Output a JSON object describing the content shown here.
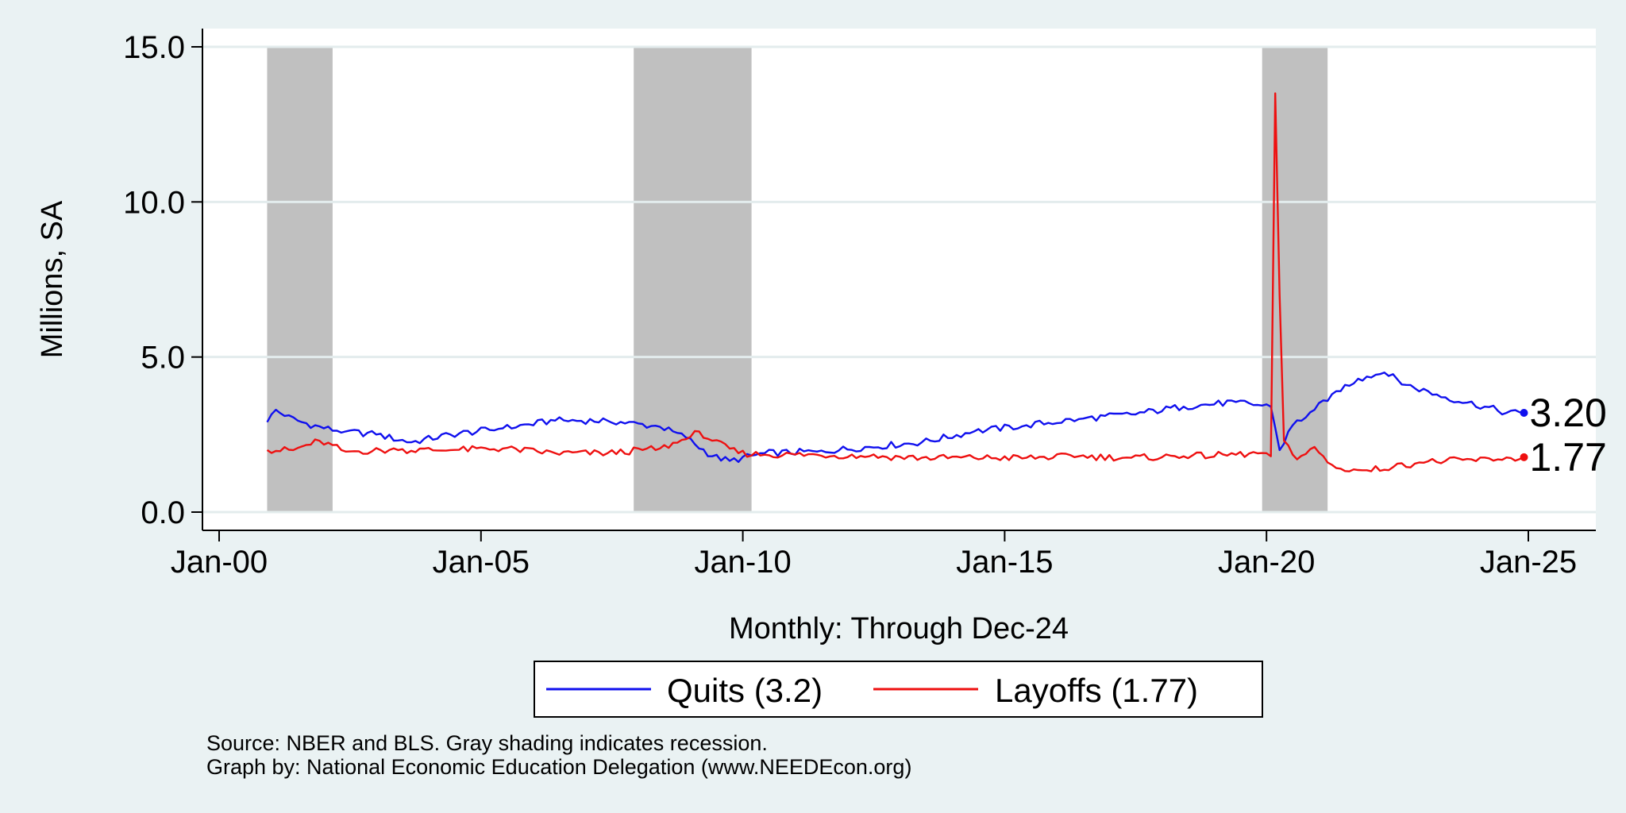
{
  "chart_data": {
    "type": "line",
    "xlabel": "Monthly: Through Dec-24",
    "ylabel": "Millions, SA",
    "ylim": [
      -0.5,
      15.6
    ],
    "yticks": [
      {
        "value": 0,
        "label": "0.0"
      },
      {
        "value": 5,
        "label": "5.0"
      },
      {
        "value": 10,
        "label": "10.0"
      },
      {
        "value": 15,
        "label": "15.0"
      }
    ],
    "xlim": [
      "Aug-99",
      "Dec-25"
    ],
    "xticks": [
      {
        "date": "2000-01",
        "label": "Jan-00"
      },
      {
        "date": "2005-01",
        "label": "Jan-05"
      },
      {
        "date": "2010-01",
        "label": "Jan-10"
      },
      {
        "date": "2015-01",
        "label": "Jan-15"
      },
      {
        "date": "2020-01",
        "label": "Jan-20"
      },
      {
        "date": "2025-01",
        "label": "Jan-25"
      }
    ],
    "recessions": [
      {
        "start": "2000-12",
        "end": "2002-03"
      },
      {
        "start": "2007-12",
        "end": "2010-03"
      },
      {
        "start": "2019-12",
        "end": "2021-03"
      }
    ],
    "recession_color": "#c0c0c0",
    "series": [
      {
        "name": "Quits",
        "color": "#1010ee",
        "points": [
          {
            "date": "2000-12",
            "value": 2.9
          },
          {
            "date": "2001-02",
            "value": 3.3
          },
          {
            "date": "2001-04",
            "value": 3.1
          },
          {
            "date": "2001-08",
            "value": 2.9
          },
          {
            "date": "2002-01",
            "value": 2.7
          },
          {
            "date": "2002-06",
            "value": 2.6
          },
          {
            "date": "2003-01",
            "value": 2.5
          },
          {
            "date": "2003-09",
            "value": 2.25
          },
          {
            "date": "2004-06",
            "value": 2.5
          },
          {
            "date": "2005-06",
            "value": 2.7
          },
          {
            "date": "2006-06",
            "value": 2.95
          },
          {
            "date": "2007-06",
            "value": 2.95
          },
          {
            "date": "2008-06",
            "value": 2.75
          },
          {
            "date": "2008-12",
            "value": 2.4
          },
          {
            "date": "2009-06",
            "value": 1.8
          },
          {
            "date": "2009-10",
            "value": 1.65
          },
          {
            "date": "2010-06",
            "value": 1.9
          },
          {
            "date": "2011-06",
            "value": 1.95
          },
          {
            "date": "2012-06",
            "value": 2.1
          },
          {
            "date": "2013-06",
            "value": 2.25
          },
          {
            "date": "2014-06",
            "value": 2.6
          },
          {
            "date": "2015-06",
            "value": 2.8
          },
          {
            "date": "2016-06",
            "value": 3.0
          },
          {
            "date": "2017-06",
            "value": 3.15
          },
          {
            "date": "2018-06",
            "value": 3.4
          },
          {
            "date": "2019-06",
            "value": 3.55
          },
          {
            "date": "2020-02",
            "value": 3.4
          },
          {
            "date": "2020-04",
            "value": 2.0
          },
          {
            "date": "2020-07",
            "value": 2.8
          },
          {
            "date": "2020-12",
            "value": 3.3
          },
          {
            "date": "2021-04",
            "value": 3.8
          },
          {
            "date": "2021-10",
            "value": 4.3
          },
          {
            "date": "2022-04",
            "value": 4.5
          },
          {
            "date": "2022-09",
            "value": 4.1
          },
          {
            "date": "2023-06",
            "value": 3.7
          },
          {
            "date": "2024-03",
            "value": 3.4
          },
          {
            "date": "2024-08",
            "value": 3.2
          },
          {
            "date": "2024-12",
            "value": 3.2
          }
        ]
      },
      {
        "name": "Layoffs",
        "color": "#ee1010",
        "points": [
          {
            "date": "2000-12",
            "value": 2.0
          },
          {
            "date": "2001-06",
            "value": 2.0
          },
          {
            "date": "2001-12",
            "value": 2.3
          },
          {
            "date": "2002-06",
            "value": 1.95
          },
          {
            "date": "2003-06",
            "value": 2.0
          },
          {
            "date": "2004-06",
            "value": 2.0
          },
          {
            "date": "2005-06",
            "value": 2.05
          },
          {
            "date": "2006-06",
            "value": 1.9
          },
          {
            "date": "2007-06",
            "value": 1.9
          },
          {
            "date": "2008-06",
            "value": 2.05
          },
          {
            "date": "2008-12",
            "value": 2.35
          },
          {
            "date": "2009-03",
            "value": 2.6
          },
          {
            "date": "2009-06",
            "value": 2.3
          },
          {
            "date": "2009-12",
            "value": 1.9
          },
          {
            "date": "2010-06",
            "value": 1.85
          },
          {
            "date": "2011-06",
            "value": 1.85
          },
          {
            "date": "2012-06",
            "value": 1.8
          },
          {
            "date": "2013-06",
            "value": 1.75
          },
          {
            "date": "2014-06",
            "value": 1.75
          },
          {
            "date": "2015-06",
            "value": 1.75
          },
          {
            "date": "2016-06",
            "value": 1.8
          },
          {
            "date": "2017-06",
            "value": 1.75
          },
          {
            "date": "2018-06",
            "value": 1.8
          },
          {
            "date": "2019-06",
            "value": 1.85
          },
          {
            "date": "2020-01",
            "value": 1.9
          },
          {
            "date": "2020-02",
            "value": 1.8
          },
          {
            "date": "2020-03",
            "value": 13.5
          },
          {
            "date": "2020-04",
            "value": 7.0
          },
          {
            "date": "2020-05",
            "value": 2.3
          },
          {
            "date": "2020-08",
            "value": 1.7
          },
          {
            "date": "2020-12",
            "value": 2.1
          },
          {
            "date": "2021-03",
            "value": 1.6
          },
          {
            "date": "2021-06",
            "value": 1.4
          },
          {
            "date": "2021-12",
            "value": 1.35
          },
          {
            "date": "2022-06",
            "value": 1.45
          },
          {
            "date": "2022-12",
            "value": 1.6
          },
          {
            "date": "2023-06",
            "value": 1.65
          },
          {
            "date": "2024-06",
            "value": 1.7
          },
          {
            "date": "2024-12",
            "value": 1.77
          }
        ]
      }
    ],
    "end_labels": [
      "3.20",
      "1.77"
    ],
    "legend": {
      "position": "bottom",
      "entries": [
        {
          "label": "Quits (3.2)",
          "color": "#1010ee"
        },
        {
          "label": "Layoffs (1.77)",
          "color": "#ee1010"
        }
      ]
    },
    "notes": [
      "Source: NBER and BLS. Gray shading indicates recession.",
      "Graph by: National Economic Education Delegation (www.NEEDEcon.org)"
    ]
  }
}
